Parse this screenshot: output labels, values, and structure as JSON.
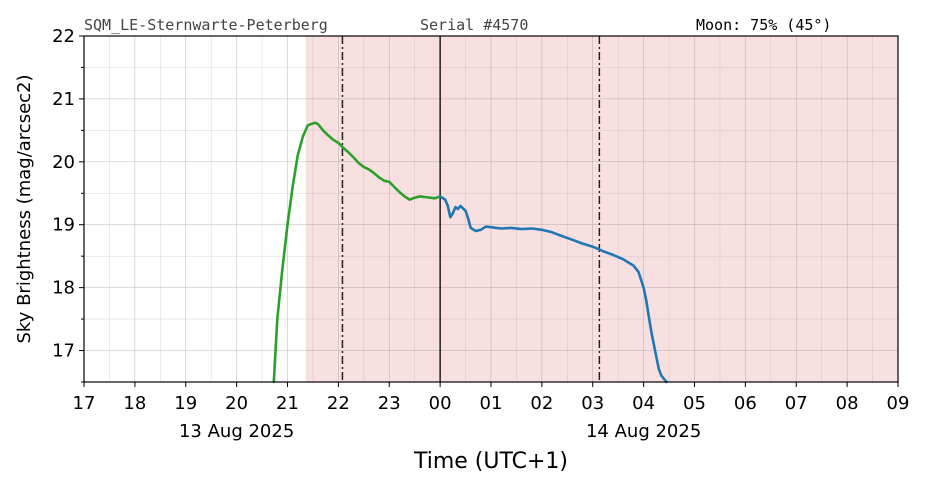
{
  "header": {
    "station": "SQM_LE-Sternwarte-Peterberg",
    "serial": "Serial #4570",
    "moon": "Moon: 75% (45°)"
  },
  "colors": {
    "evening": "#2ca02c",
    "morning": "#1f77b4",
    "night_shade": "#f8e0e0",
    "grid": "#999999",
    "marker": "#222222"
  },
  "chart_data": {
    "type": "line",
    "xlabel": "Time (UTC+1)",
    "ylabel": "Sky Brightness (mag/arcsec2)",
    "xlim_hours": [
      17,
      33
    ],
    "ylim": [
      16.5,
      22
    ],
    "x_ticks": [
      "17",
      "18",
      "19",
      "20",
      "21",
      "22",
      "23",
      "00",
      "01",
      "02",
      "03",
      "04",
      "05",
      "06",
      "07",
      "08",
      "09"
    ],
    "y_ticks": [
      "17",
      "18",
      "19",
      "20",
      "21",
      "22"
    ],
    "date_labels": [
      {
        "hour": 20,
        "text": "13 Aug 2025"
      },
      {
        "hour": 28,
        "text": "14 Aug 2025"
      }
    ],
    "grid": true,
    "shaded_region_hours": [
      21.36,
      33
    ],
    "dashdot_markers_hours": [
      22.08,
      27.13
    ],
    "midnight_marker_hours": 24.0,
    "series": [
      {
        "color": "#2ca02c",
        "x": [
          20.73,
          20.8,
          20.9,
          21.0,
          21.1,
          21.2,
          21.3,
          21.4,
          21.5,
          21.55,
          21.6,
          21.7,
          21.8,
          21.9,
          22.0,
          22.1,
          22.2,
          22.3,
          22.4,
          22.5,
          22.6,
          22.7,
          22.8,
          22.9,
          23.0,
          23.1,
          23.2,
          23.3,
          23.4,
          23.5,
          23.6,
          23.7,
          23.8,
          23.9,
          24.0
        ],
        "y": [
          16.5,
          17.5,
          18.3,
          19.0,
          19.6,
          20.1,
          20.4,
          20.58,
          20.61,
          20.62,
          20.6,
          20.5,
          20.42,
          20.35,
          20.3,
          20.22,
          20.15,
          20.07,
          19.98,
          19.92,
          19.88,
          19.82,
          19.75,
          19.7,
          19.68,
          19.6,
          19.52,
          19.45,
          19.4,
          19.43,
          19.45,
          19.44,
          19.43,
          19.42,
          19.45
        ]
      },
      {
        "color": "#1f77b4",
        "x": [
          24.0,
          24.1,
          24.15,
          24.2,
          24.25,
          24.3,
          24.35,
          24.4,
          24.5,
          24.55,
          24.6,
          24.7,
          24.8,
          24.9,
          25.0,
          25.1,
          25.2,
          25.4,
          25.6,
          25.8,
          26.0,
          26.2,
          26.4,
          26.6,
          26.8,
          27.0,
          27.2,
          27.4,
          27.6,
          27.8,
          27.9,
          28.0,
          28.05,
          28.1,
          28.15,
          28.2,
          28.25,
          28.3,
          28.35,
          28.4,
          28.45
        ],
        "y": [
          19.45,
          19.4,
          19.3,
          19.12,
          19.18,
          19.28,
          19.25,
          19.3,
          19.22,
          19.1,
          18.95,
          18.9,
          18.92,
          18.97,
          18.96,
          18.95,
          18.94,
          18.95,
          18.93,
          18.94,
          18.92,
          18.88,
          18.82,
          18.76,
          18.7,
          18.65,
          18.58,
          18.52,
          18.45,
          18.35,
          18.25,
          18.0,
          17.8,
          17.55,
          17.3,
          17.1,
          16.9,
          16.7,
          16.6,
          16.55,
          16.5
        ]
      }
    ]
  }
}
